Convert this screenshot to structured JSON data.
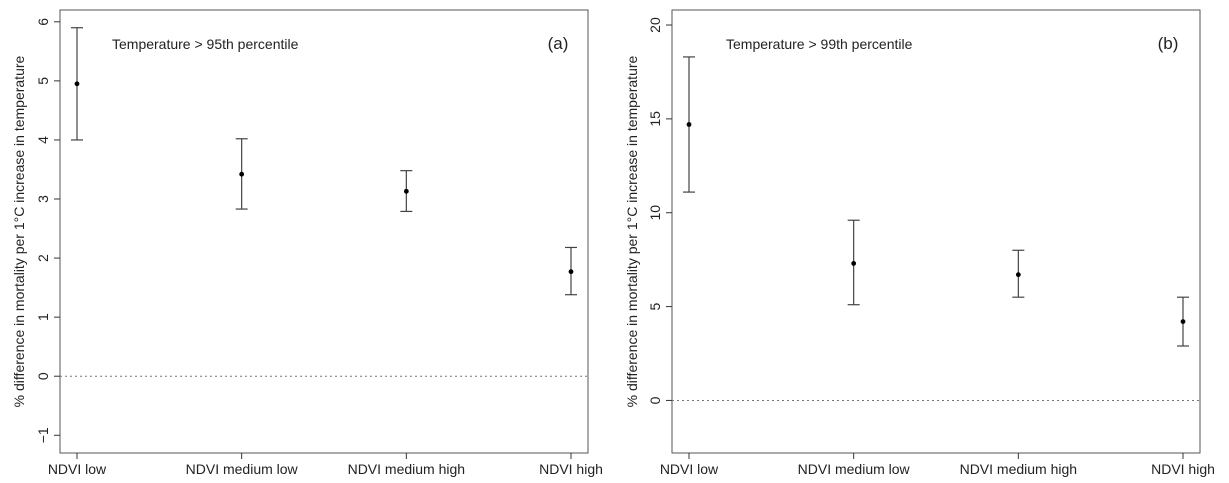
{
  "chart_data": [
    {
      "type": "errorbar",
      "panel_label": "(a)",
      "annotation": "Temperature > 95th percentile",
      "ylabel": "% difference in mortality per 1°C increase in temperature",
      "xlabel": "",
      "categories": [
        "NDVI low",
        "NDVI medium low",
        "NDVI medium high",
        "NDVI high"
      ],
      "values": [
        4.95,
        3.42,
        3.13,
        1.77
      ],
      "lower": [
        4.0,
        2.83,
        2.79,
        1.38
      ],
      "upper": [
        5.9,
        4.02,
        3.48,
        2.18
      ],
      "ylim": [
        -1.3,
        6.2
      ],
      "yticks": [
        -1,
        0,
        1,
        2,
        3,
        4,
        5,
        6
      ],
      "ytick_labels": [
        "−1",
        "0",
        "1",
        "2",
        "3",
        "4",
        "5",
        "6"
      ],
      "reference_line": 0
    },
    {
      "type": "errorbar",
      "panel_label": "(b)",
      "annotation": "Temperature > 99th percentile",
      "ylabel": "% difference in mortality per 1°C increase in temperature",
      "xlabel": "",
      "categories": [
        "NDVI low",
        "NDVI medium low",
        "NDVI medium high",
        "NDVI high"
      ],
      "values": [
        14.7,
        7.3,
        6.7,
        4.2
      ],
      "lower": [
        11.1,
        5.1,
        5.5,
        2.9
      ],
      "upper": [
        18.3,
        9.6,
        8.0,
        5.5
      ],
      "ylim": [
        -2.8,
        20.8
      ],
      "yticks": [
        0,
        5,
        10,
        15,
        20
      ],
      "ytick_labels": [
        "0",
        "5",
        "10",
        "15",
        "20"
      ],
      "reference_line": 0
    }
  ]
}
